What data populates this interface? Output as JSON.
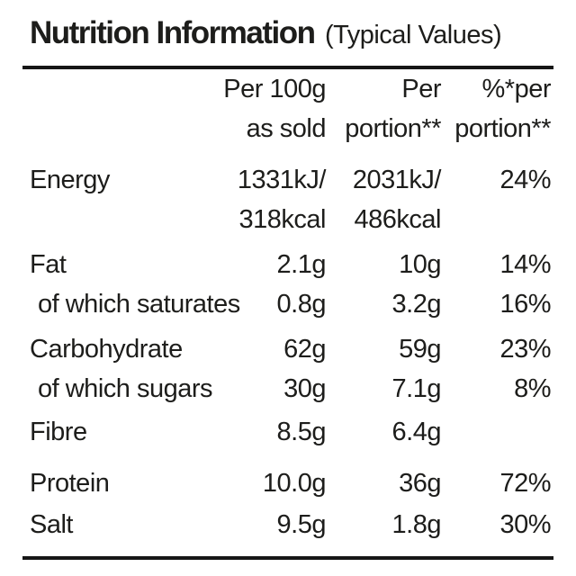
{
  "label": {
    "title": "Nutrition Information",
    "subtitle": "(Typical Values)",
    "header": {
      "per100_line1": "Per 100g",
      "per100_line2": "as sold",
      "portion_line1": "Per",
      "portion_line2": "portion**",
      "percent_line1": "%*per",
      "percent_line2": "portion**"
    },
    "rows": [
      {
        "label": "Energy",
        "per100": "1331kJ/",
        "per100_line2": "318kcal",
        "portion": "2031kJ/",
        "portion_line2": "486kcal",
        "percent": "24%"
      },
      {
        "label": "Fat",
        "per100": "2.1g",
        "portion": "10g",
        "percent": "14%"
      },
      {
        "label": "of which saturates",
        "per100": "0.8g",
        "portion": "3.2g",
        "percent": "16%"
      },
      {
        "label": "Carbohydrate",
        "per100": "62g",
        "portion": "59g",
        "percent": "23%"
      },
      {
        "label": "of which sugars",
        "per100": "30g",
        "portion": "7.1g",
        "percent": "8%"
      },
      {
        "label": "Fibre",
        "per100": "8.5g",
        "portion": "6.4g",
        "percent": ""
      },
      {
        "label": "Protein",
        "per100": "10.0g",
        "portion": "36g",
        "percent": "72%"
      },
      {
        "label": "Salt",
        "per100": "9.5g",
        "portion": "1.8g",
        "percent": "30%"
      }
    ],
    "colors": {
      "text": "#1d1d1b",
      "rule": "#161616",
      "background": "#ffffff"
    }
  }
}
